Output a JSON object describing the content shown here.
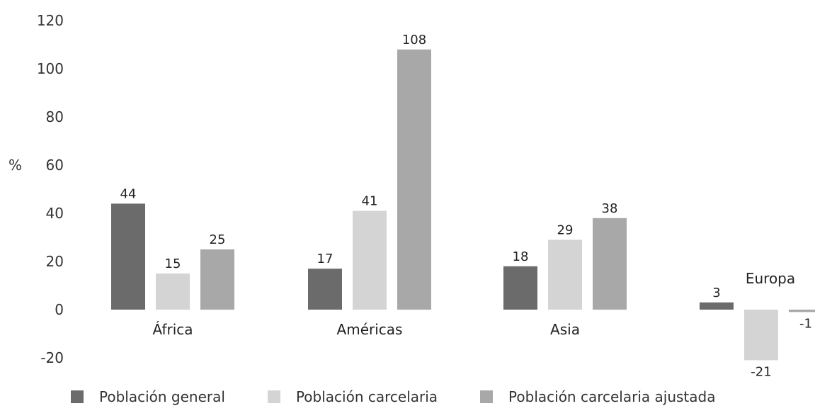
{
  "chart_data": {
    "type": "bar",
    "ylabel": "%",
    "ylim": [
      -20,
      120
    ],
    "yticks": [
      -20,
      0,
      20,
      40,
      60,
      80,
      100,
      120
    ],
    "categories": [
      "África",
      "Américas",
      "Asia",
      "Europa"
    ],
    "series": [
      {
        "name": "Población general",
        "color": "#6b6b6b",
        "values": [
          44,
          17,
          18,
          3
        ]
      },
      {
        "name": "Población carcelaria",
        "color": "#d4d4d4",
        "values": [
          15,
          41,
          29,
          -21
        ]
      },
      {
        "name": "Población carcelaria ajustada",
        "color": "#a8a8a8",
        "values": [
          25,
          108,
          38,
          -1
        ]
      }
    ],
    "legend": "bottom",
    "grid": false
  }
}
